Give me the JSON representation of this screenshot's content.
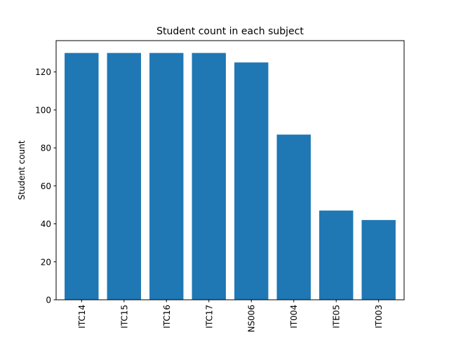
{
  "chart_data": {
    "type": "bar",
    "title": "Student count in each subject",
    "xlabel": "",
    "ylabel": "Student count",
    "categories": [
      "ITC14",
      "ITC15",
      "ITC16",
      "ITC17",
      "NS006",
      "IT004",
      "ITE05",
      "IT003"
    ],
    "values": [
      130,
      130,
      130,
      130,
      125,
      87,
      47,
      42
    ],
    "ylim": [
      0,
      136.5
    ],
    "yticks": [
      0,
      20,
      40,
      60,
      80,
      100,
      120
    ],
    "grid": false,
    "bar_color": "#1f77b4"
  }
}
